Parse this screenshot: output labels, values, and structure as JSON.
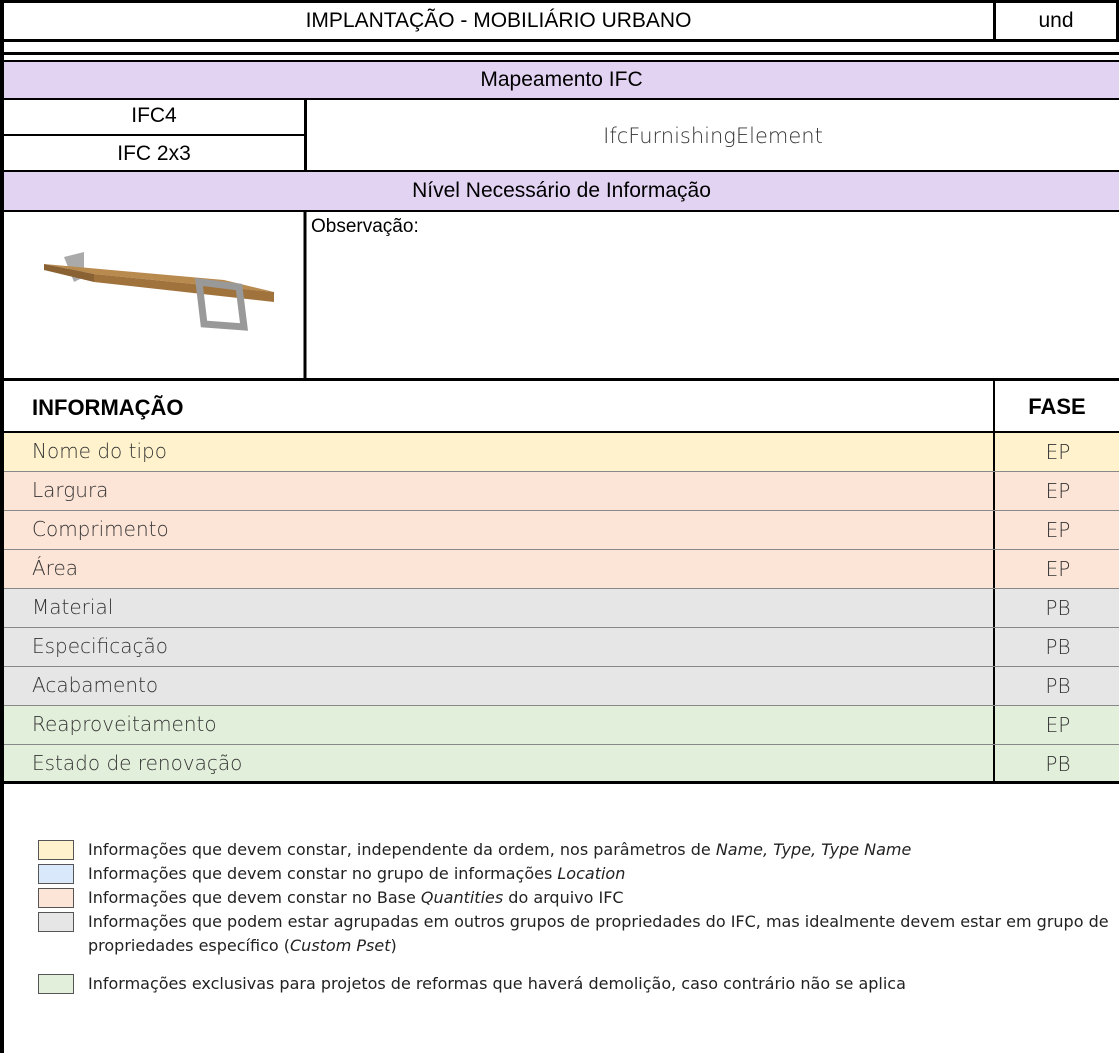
{
  "header": {
    "title": "IMPLANTAÇÃO - MOBILIÁRIO URBANO",
    "unit": "und"
  },
  "mapping": {
    "title": "Mapeamento IFC",
    "schemas": [
      "IFC4",
      "IFC 2x3"
    ],
    "entity": "IfcFurnishingElement"
  },
  "level": {
    "title": "Nível Necessário de Informação",
    "note": "Observação:"
  },
  "table": {
    "columns": [
      "INFORMAÇÃO",
      "FASE"
    ],
    "rows": [
      [
        "Nome do tipo",
        "EP"
      ],
      [
        "Largura",
        "EP"
      ],
      [
        "Comprimento",
        "EP"
      ],
      [
        "Área",
        "EP"
      ],
      [
        "Material",
        "PB"
      ],
      [
        "Especificação",
        "PB"
      ],
      [
        "Acabamento",
        "PB"
      ],
      [
        "Reaproveitamento",
        "EP"
      ],
      [
        "Estado de renovação",
        "PB"
      ]
    ]
  },
  "legend": [
    [
      "Informações que devem constar, independente  da ordem, nos parâmetros de ",
      "Name, Type, Type Name"
    ],
    [
      "Informações que devem constar no grupo de informações ",
      "Location"
    ],
    [
      "Informações que devem constar no Base ",
      "Quantities",
      " do arquivo IFC"
    ],
    [
      "Informações que podem estar agrupadas em outros grupos de propriedades do IFC, mas idealmente devem estar em grupo de propriedades específico (",
      "Custom Pset",
      ")"
    ],
    [
      "Informações exclusivas para projetos de reformas que haverá demolição, caso contrário não se aplica"
    ]
  ]
}
